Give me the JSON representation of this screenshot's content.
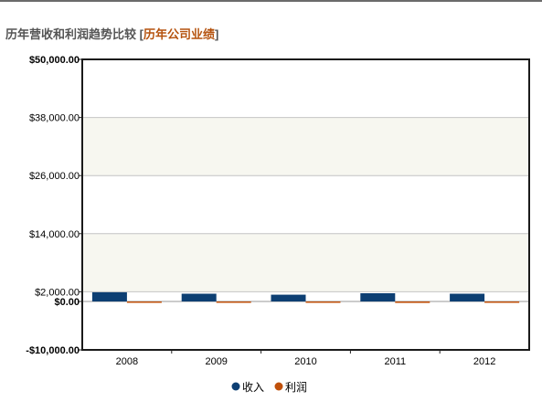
{
  "header": {
    "title": "历年营收和利润趋势比较",
    "bracket_open": "[",
    "link": "历年公司业绩",
    "bracket_close": "]"
  },
  "colors": {
    "revenue": "#0d3f73",
    "profit": "#c0500a",
    "header_link": "#b5530f"
  },
  "chart_data": {
    "type": "bar",
    "categories": [
      "2008",
      "2009",
      "2010",
      "2011",
      "2012"
    ],
    "series": [
      {
        "name": "收入",
        "values": [
          1900,
          1600,
          1400,
          1700,
          1600
        ]
      },
      {
        "name": "利润",
        "values": [
          -100,
          -100,
          -100,
          -300,
          -100
        ]
      }
    ],
    "y_ticks": [
      {
        "value": 50000,
        "label": "$50,000.00",
        "bold": true
      },
      {
        "value": 38000,
        "label": "$38,000.00",
        "bold": false
      },
      {
        "value": 26000,
        "label": "$26,000.00",
        "bold": false
      },
      {
        "value": 14000,
        "label": "$14,000.00",
        "bold": false
      },
      {
        "value": 2000,
        "label": "$2,000.00",
        "bold": false
      },
      {
        "value": 0,
        "label": "$0.00",
        "bold": true
      },
      {
        "value": -10000,
        "label": "-$10,000.00",
        "bold": true
      }
    ],
    "ylim": [
      -10000,
      50000
    ],
    "grid": true,
    "legend_position": "bottom",
    "xlabel": "",
    "ylabel": ""
  }
}
